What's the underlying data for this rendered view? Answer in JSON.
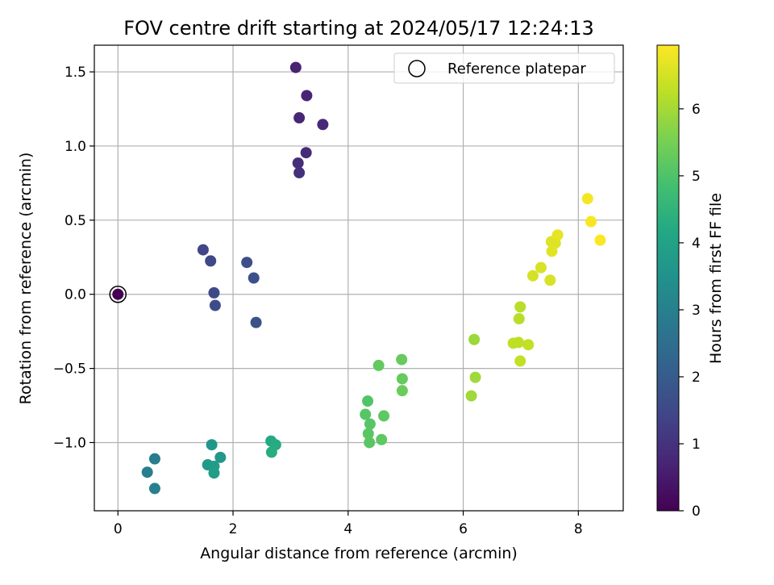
{
  "chart_data": {
    "type": "scatter",
    "title": "FOV centre drift starting at 2024/05/17 12:24:13",
    "xlabel": "Angular distance from reference (arcmin)",
    "ylabel": "Rotation from reference (arcmin)",
    "xlim": [
      -0.41,
      8.78
    ],
    "ylim": [
      -1.46,
      1.68
    ],
    "xticks": [
      0,
      2,
      4,
      6,
      8
    ],
    "xtick_labels": [
      "0",
      "2",
      "4",
      "6",
      "8"
    ],
    "yticks": [
      -1.0,
      -0.5,
      0.0,
      0.5,
      1.0,
      1.5
    ],
    "ytick_labels": [
      "−1.0",
      "−0.5",
      "0.0",
      "0.5",
      "1.0",
      "1.5"
    ],
    "grid": true,
    "legend": {
      "placement": "upper-right",
      "entries": [
        "Reference platepar"
      ]
    },
    "colorbar": {
      "label": "Hours from first FF file",
      "range": [
        0,
        6.95
      ],
      "ticks": [
        0,
        1,
        2,
        3,
        4,
        5,
        6
      ],
      "tick_labels": [
        "0",
        "1",
        "2",
        "3",
        "4",
        "5",
        "6"
      ],
      "colormap": "viridis"
    },
    "reference_point": {
      "x": 0,
      "y": 0
    },
    "points": [
      {
        "x": 0.0,
        "y": 0.0,
        "hours": 0.0
      },
      {
        "x": 3.09,
        "y": 1.53,
        "hours": 0.65
      },
      {
        "x": 3.28,
        "y": 1.34,
        "hours": 0.7
      },
      {
        "x": 3.15,
        "y": 1.19,
        "hours": 0.75
      },
      {
        "x": 3.56,
        "y": 1.145,
        "hours": 0.8
      },
      {
        "x": 3.27,
        "y": 0.955,
        "hours": 0.85
      },
      {
        "x": 3.13,
        "y": 0.885,
        "hours": 0.9
      },
      {
        "x": 3.15,
        "y": 0.82,
        "hours": 0.95
      },
      {
        "x": 1.48,
        "y": 0.3,
        "hours": 1.45
      },
      {
        "x": 1.61,
        "y": 0.225,
        "hours": 1.5
      },
      {
        "x": 1.67,
        "y": 0.01,
        "hours": 1.55
      },
      {
        "x": 1.69,
        "y": -0.075,
        "hours": 1.6
      },
      {
        "x": 2.24,
        "y": 0.215,
        "hours": 1.65
      },
      {
        "x": 2.36,
        "y": 0.11,
        "hours": 1.7
      },
      {
        "x": 2.4,
        "y": -0.19,
        "hours": 1.75
      },
      {
        "x": 0.64,
        "y": -1.11,
        "hours": 2.9
      },
      {
        "x": 0.51,
        "y": -1.2,
        "hours": 2.95
      },
      {
        "x": 0.64,
        "y": -1.31,
        "hours": 3.0
      },
      {
        "x": 1.63,
        "y": -1.015,
        "hours": 3.65
      },
      {
        "x": 1.78,
        "y": -1.1,
        "hours": 3.7
      },
      {
        "x": 1.56,
        "y": -1.15,
        "hours": 3.75
      },
      {
        "x": 1.67,
        "y": -1.16,
        "hours": 3.8
      },
      {
        "x": 1.67,
        "y": -1.205,
        "hours": 3.85
      },
      {
        "x": 2.66,
        "y": -0.99,
        "hours": 4.2
      },
      {
        "x": 2.74,
        "y": -1.015,
        "hours": 4.25
      },
      {
        "x": 2.67,
        "y": -1.065,
        "hours": 4.3
      },
      {
        "x": 4.34,
        "y": -0.72,
        "hours": 5.05
      },
      {
        "x": 4.3,
        "y": -0.81,
        "hours": 5.1
      },
      {
        "x": 4.38,
        "y": -0.875,
        "hours": 5.1
      },
      {
        "x": 4.35,
        "y": -0.94,
        "hours": 5.15
      },
      {
        "x": 4.37,
        "y": -1.0,
        "hours": 5.15
      },
      {
        "x": 4.58,
        "y": -0.98,
        "hours": 5.2
      },
      {
        "x": 4.62,
        "y": -0.82,
        "hours": 5.2
      },
      {
        "x": 4.53,
        "y": -0.48,
        "hours": 5.25
      },
      {
        "x": 4.93,
        "y": -0.44,
        "hours": 5.3
      },
      {
        "x": 4.94,
        "y": -0.57,
        "hours": 5.3
      },
      {
        "x": 4.94,
        "y": -0.65,
        "hours": 5.35
      },
      {
        "x": 6.19,
        "y": -0.305,
        "hours": 5.9
      },
      {
        "x": 6.21,
        "y": -0.56,
        "hours": 5.95
      },
      {
        "x": 6.14,
        "y": -0.685,
        "hours": 5.95
      },
      {
        "x": 6.99,
        "y": -0.085,
        "hours": 6.2
      },
      {
        "x": 6.97,
        "y": -0.165,
        "hours": 6.2
      },
      {
        "x": 6.87,
        "y": -0.33,
        "hours": 6.25
      },
      {
        "x": 6.96,
        "y": -0.325,
        "hours": 6.25
      },
      {
        "x": 7.13,
        "y": -0.34,
        "hours": 6.3
      },
      {
        "x": 6.99,
        "y": -0.45,
        "hours": 6.3
      },
      {
        "x": 7.21,
        "y": 0.125,
        "hours": 6.5
      },
      {
        "x": 7.35,
        "y": 0.18,
        "hours": 6.55
      },
      {
        "x": 7.51,
        "y": 0.095,
        "hours": 6.55
      },
      {
        "x": 7.53,
        "y": 0.355,
        "hours": 6.6
      },
      {
        "x": 7.6,
        "y": 0.345,
        "hours": 6.6
      },
      {
        "x": 7.54,
        "y": 0.29,
        "hours": 6.65
      },
      {
        "x": 7.64,
        "y": 0.4,
        "hours": 6.7
      },
      {
        "x": 8.16,
        "y": 0.645,
        "hours": 6.85
      },
      {
        "x": 8.22,
        "y": 0.49,
        "hours": 6.9
      },
      {
        "x": 8.38,
        "y": 0.365,
        "hours": 6.95
      }
    ]
  }
}
